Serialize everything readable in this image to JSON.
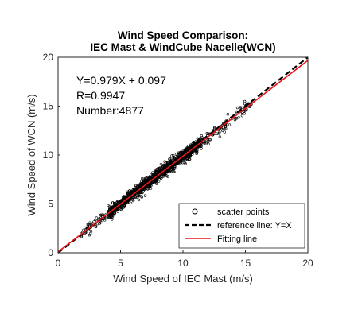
{
  "chart_data": {
    "type": "scatter",
    "title": [
      "Wind Speed Comparison:",
      "IEC Mast & WindCube Nacelle(WCN)"
    ],
    "xlabel": "Wind Speed of IEC Mast (m/s)",
    "ylabel": "Wind Speed of WCN (m/s)",
    "xlim": [
      0,
      20
    ],
    "ylim": [
      0,
      20
    ],
    "xticks": [
      0,
      5,
      10,
      15,
      20
    ],
    "yticks": [
      0,
      5,
      10,
      15,
      20
    ],
    "grid": false,
    "annotations": [
      "Y=0.979X + 0.097",
      "R=0.9947",
      "Number:4877"
    ],
    "scatter_range_x": [
      1.8,
      15.5
    ],
    "scatter_count": 4877,
    "series": [
      {
        "name": "scatter points",
        "kind": "scatter",
        "color": "#000000",
        "marker": "open-circle"
      },
      {
        "name": "reference line: Y=X",
        "kind": "line",
        "color": "#000000",
        "style": "dashed",
        "slope": 1,
        "intercept": 0
      },
      {
        "name": "Fitting line",
        "kind": "line",
        "color": "#e8161b",
        "style": "solid",
        "slope": 0.979,
        "intercept": 0.097
      }
    ],
    "legend_position": "lower-right"
  }
}
